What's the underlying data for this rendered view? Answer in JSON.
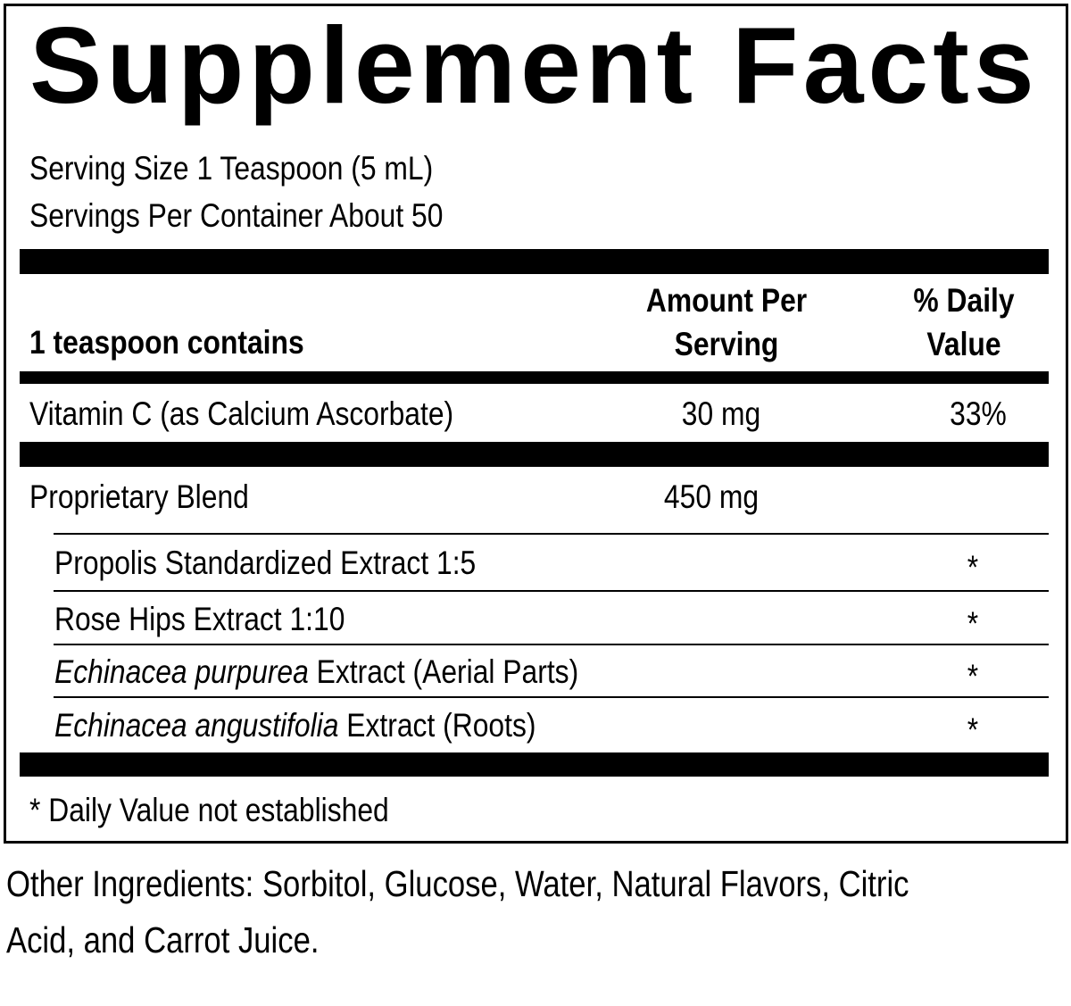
{
  "title": "Supplement Facts",
  "serving_size": "Serving Size 1 Teaspoon (5 mL)",
  "servings_per_container": "Servings Per Container About 50",
  "header": {
    "contains": "1 teaspoon contains",
    "amount_line1": "Amount Per",
    "amount_line2": "Serving",
    "dv_line1": "% Daily",
    "dv_line2": "Value"
  },
  "nutrients": [
    {
      "name": "Vitamin C (as Calcium Ascorbate)",
      "amount": "30 mg",
      "dv": "33%"
    }
  ],
  "blend": {
    "name": "Proprietary Blend",
    "amount": "450 mg",
    "ingredients": [
      {
        "name_italic": "",
        "name": "Propolis Standardized Extract 1:5",
        "dv": "*"
      },
      {
        "name_italic": "",
        "name": "Rose Hips Extract 1:10",
        "dv": "*"
      },
      {
        "name_italic": "Echinacea purpurea",
        "name": " Extract (Aerial Parts)",
        "dv": "*"
      },
      {
        "name_italic": "Echinacea angustifolia",
        "name": " Extract (Roots)",
        "dv": "*"
      }
    ]
  },
  "footnote": "* Daily Value not established",
  "other_ingredients_line1": "Other Ingredients: Sorbitol, Glucose, Water, Natural Flavors, Citric",
  "other_ingredients_line2": "Acid, and Carrot Juice."
}
